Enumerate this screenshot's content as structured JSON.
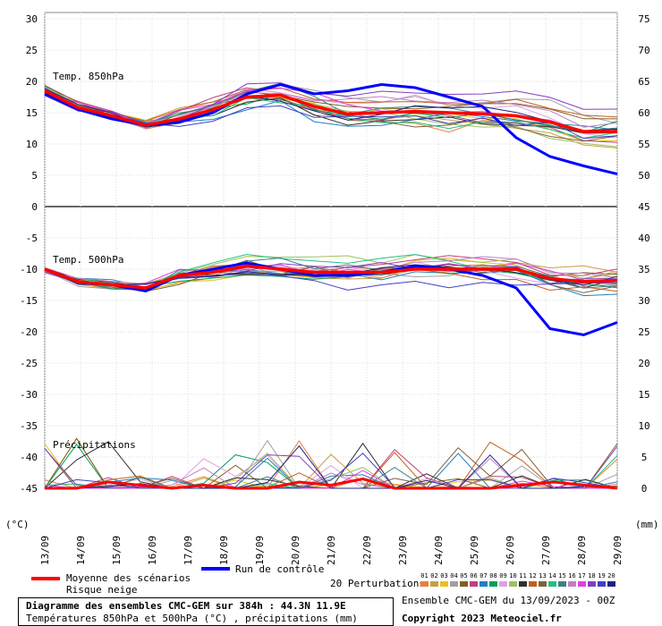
{
  "chart_data": {
    "type": "line",
    "title": "Diagramme des ensembles CMC-GEM sur 384h : 44.3N 11.9E",
    "subtitle": "Températures 850hPa et 500hPa (°C) , précipitations (mm)",
    "run_label": "Ensemble CMC-GEM du 13/09/2023 - 00Z",
    "copyright": "Copyright 2023 Meteociel.fr",
    "left_axis": {
      "label": "(°C)",
      "range": [
        -45,
        30
      ],
      "ticks": [
        30,
        25,
        20,
        15,
        10,
        5,
        0,
        -5,
        -10,
        -15,
        -20,
        -25,
        -30,
        -35,
        -40,
        -45
      ]
    },
    "right_axis": {
      "label": "(mm)",
      "ticks": [
        75,
        70,
        65,
        60,
        55,
        50,
        45,
        40,
        35,
        30,
        25,
        20,
        15,
        10,
        5,
        0
      ]
    },
    "x_ticks": [
      "13/09",
      "14/09",
      "15/09",
      "16/09",
      "17/09",
      "18/09",
      "19/09",
      "20/09",
      "21/09",
      "22/09",
      "23/09",
      "24/09",
      "25/09",
      "26/09",
      "27/09",
      "28/09",
      "29/09"
    ],
    "panel_labels": [
      "Temp. 850hPa",
      "Temp. 500hPa",
      "Précipitations"
    ],
    "legend": {
      "mean_label": "Moyenne des scénarios",
      "snow_label": "Risque neige",
      "control_label": "Run de contrôle",
      "perturbations_label": "20 Perturbations",
      "perturbation_numbers": [
        "01",
        "02",
        "03",
        "04",
        "05",
        "06",
        "07",
        "08",
        "09",
        "10",
        "11",
        "12",
        "13",
        "14",
        "15",
        "16",
        "17",
        "18",
        "19",
        "20"
      ]
    },
    "series_colors": [
      "#e8803c",
      "#c8a040",
      "#e8c020",
      "#a0a0a0",
      "#806020",
      "#c04080",
      "#2080c0",
      "#00a060",
      "#e0a0e0",
      "#a0c060",
      "#303030",
      "#c06020",
      "#806040",
      "#20c080",
      "#408080",
      "#c080c0",
      "#e040e0",
      "#8040c0",
      "#4040c0",
      "#202080"
    ],
    "mean_color": "#ff0000",
    "control_color": "#0000ff",
    "series": [
      {
        "name": "Moyenne des scénarios",
        "t850": [
          18.5,
          15.8,
          14.5,
          13.0,
          14.0,
          15.5,
          17.5,
          17.8,
          16.0,
          14.8,
          15.0,
          15.2,
          15.0,
          14.8,
          14.5,
          13.5,
          12.0,
          12.0
        ],
        "t500": [
          -10.0,
          -12.0,
          -12.5,
          -13.0,
          -11.0,
          -10.5,
          -9.5,
          -10.0,
          -10.5,
          -10.5,
          -10.5,
          -10.0,
          -10.0,
          -10.0,
          -10.0,
          -11.5,
          -12.0,
          -11.8
        ],
        "precip": [
          0,
          0,
          1,
          0.5,
          0,
          0.5,
          0,
          0,
          1,
          0.5,
          1.5,
          0,
          0,
          0,
          0,
          0.5,
          1,
          0.5,
          0
        ]
      },
      {
        "name": "Run de contrôle",
        "t850": [
          18.0,
          15.5,
          14.0,
          13.0,
          13.5,
          15.0,
          18.0,
          19.5,
          18.0,
          18.5,
          19.5,
          19.0,
          17.5,
          16.0,
          11.0,
          8.0,
          6.5,
          5.2
        ],
        "t500": [
          -10.0,
          -12.0,
          -12.5,
          -13.5,
          -11.0,
          -10.0,
          -9.0,
          -10.0,
          -11.0,
          -11.0,
          -10.5,
          -9.5,
          -10.0,
          -11.0,
          -13.0,
          -19.5,
          -20.5,
          -18.5
        ],
        "precip": [
          0,
          0,
          0.5,
          0,
          0,
          0,
          0,
          0,
          0,
          0,
          0,
          0,
          0,
          0,
          0,
          0,
          0,
          0,
          0
        ]
      }
    ]
  }
}
